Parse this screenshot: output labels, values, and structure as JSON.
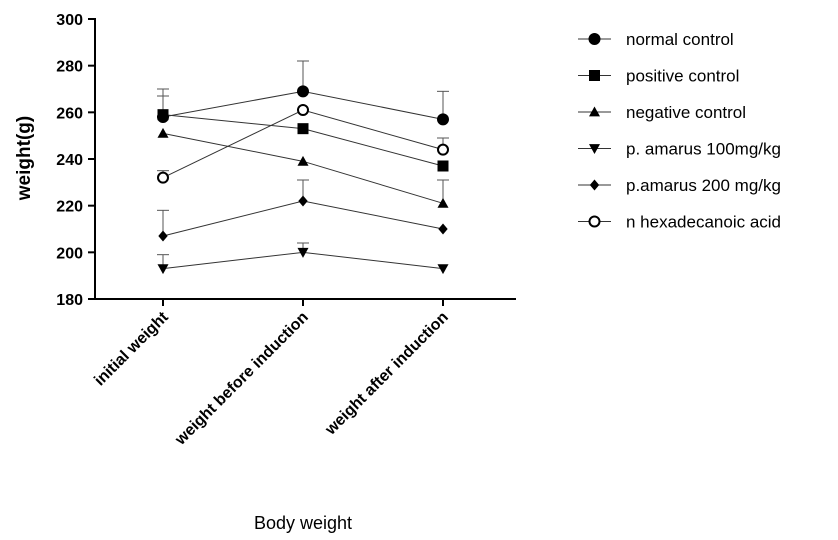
{
  "chart_data": {
    "type": "line",
    "title": "",
    "xlabel": "Body weight",
    "ylabel": "weight(g)",
    "categories": [
      "initial weight",
      "weight before induction",
      "weight after induction"
    ],
    "ylim": [
      180,
      300
    ],
    "yticks": [
      180,
      200,
      220,
      240,
      260,
      280,
      300
    ],
    "grid": false,
    "legend_position": "right",
    "series": [
      {
        "name": "normal control",
        "marker": "circle-filled",
        "values": [
          258,
          269,
          257
        ],
        "errors": [
          12,
          13,
          12
        ]
      },
      {
        "name": "positive control",
        "marker": "square-filled",
        "values": [
          259,
          253,
          237
        ],
        "errors": [
          8,
          0,
          0
        ]
      },
      {
        "name": "negative control",
        "marker": "triangle-up-filled",
        "values": [
          251,
          239,
          221
        ],
        "errors": [
          0,
          0,
          10
        ]
      },
      {
        "name": "p. amarus 100mg/kg",
        "marker": "triangle-down-filled",
        "values": [
          193,
          200,
          193
        ],
        "errors": [
          6,
          4,
          0
        ]
      },
      {
        "name": "p.amarus 200 mg/kg",
        "marker": "diamond-filled",
        "values": [
          207,
          222,
          210
        ],
        "errors": [
          11,
          9,
          0
        ]
      },
      {
        "name": "n hexadecanoic acid",
        "marker": "circle-open",
        "values": [
          232,
          261,
          244
        ],
        "errors": [
          3,
          0,
          5
        ]
      }
    ]
  }
}
